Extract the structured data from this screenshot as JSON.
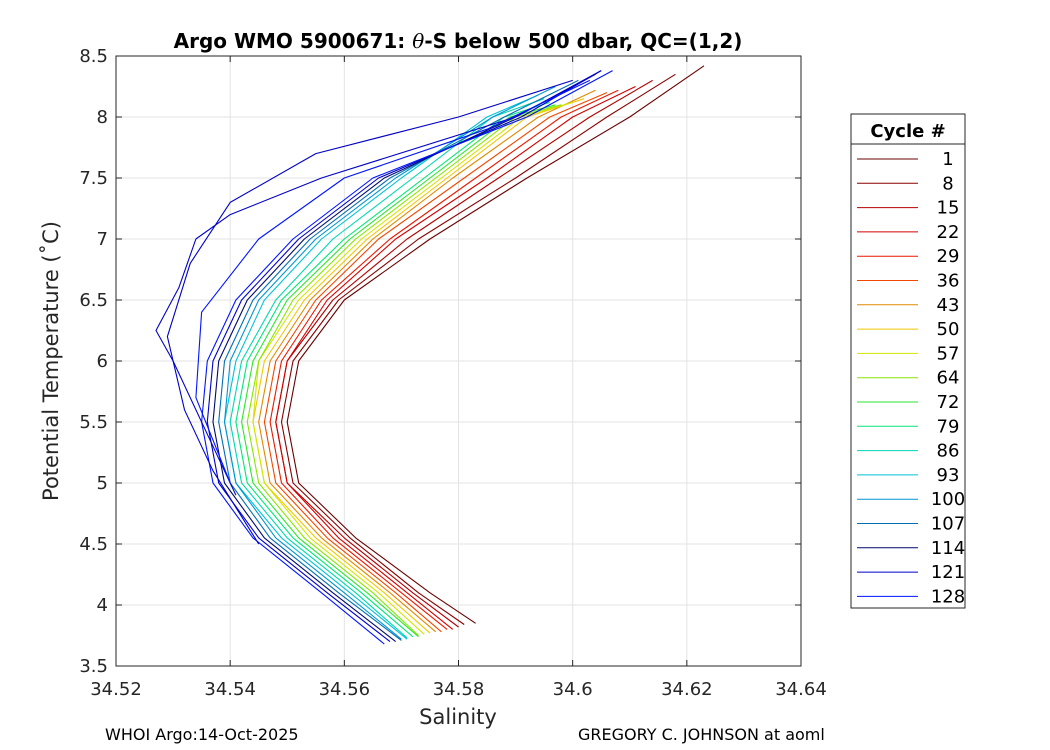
{
  "chart_data": {
    "type": "line",
    "title_prefix": "Argo WMO 5900671: ",
    "title_theta": "θ",
    "title_suffix": "-S below 500 dbar,  QC=(1,2)",
    "xlabel": "Salinity",
    "ylabel": "Potential Temperature (˚C)",
    "xlim": [
      34.52,
      34.64
    ],
    "ylim": [
      3.5,
      8.5
    ],
    "xticks": [
      34.52,
      34.54,
      34.56,
      34.58,
      34.6,
      34.62,
      34.64
    ],
    "xtick_labels": [
      "34.52",
      "34.54",
      "34.56",
      "34.58",
      "34.6",
      "34.62",
      "34.64"
    ],
    "yticks": [
      3.5,
      4,
      4.5,
      5,
      5.5,
      6,
      6.5,
      7,
      7.5,
      8,
      8.5
    ],
    "ytick_labels": [
      "3.5",
      "4",
      "4.5",
      "5",
      "5.5",
      "6",
      "6.5",
      "7",
      "7.5",
      "8",
      "8.5"
    ],
    "grid": true,
    "legend_title": "Cycle #",
    "legend_position": "right-outside",
    "series": [
      {
        "name": "1",
        "color": "#6b0000",
        "values": [
          [
            34.583,
            3.85
          ],
          [
            34.575,
            4.1
          ],
          [
            34.562,
            4.55
          ],
          [
            34.552,
            5.0
          ],
          [
            34.55,
            5.5
          ],
          [
            34.552,
            6.0
          ],
          [
            34.56,
            6.5
          ],
          [
            34.575,
            7.0
          ],
          [
            34.592,
            7.5
          ],
          [
            34.61,
            8.0
          ],
          [
            34.623,
            8.42
          ]
        ]
      },
      {
        "name": "8",
        "color": "#8b0000",
        "values": [
          [
            34.581,
            3.84
          ],
          [
            34.573,
            4.1
          ],
          [
            34.561,
            4.55
          ],
          [
            34.551,
            5.0
          ],
          [
            34.549,
            5.5
          ],
          [
            34.551,
            6.0
          ],
          [
            34.559,
            6.5
          ],
          [
            34.573,
            7.0
          ],
          [
            34.59,
            7.5
          ],
          [
            34.606,
            8.0
          ],
          [
            34.618,
            8.35
          ]
        ]
      },
      {
        "name": "15",
        "color": "#b30000",
        "values": [
          [
            34.58,
            3.82
          ],
          [
            34.572,
            4.1
          ],
          [
            34.56,
            4.55
          ],
          [
            34.55,
            5.0
          ],
          [
            34.548,
            5.5
          ],
          [
            34.55,
            6.0
          ],
          [
            34.558,
            6.5
          ],
          [
            34.571,
            7.0
          ],
          [
            34.587,
            7.5
          ],
          [
            34.603,
            8.0
          ],
          [
            34.614,
            8.3
          ]
        ]
      },
      {
        "name": "22",
        "color": "#d40000",
        "values": [
          [
            34.579,
            3.8
          ],
          [
            34.571,
            4.1
          ],
          [
            34.559,
            4.55
          ],
          [
            34.55,
            5.0
          ],
          [
            34.548,
            5.5
          ],
          [
            34.55,
            6.0
          ],
          [
            34.557,
            6.5
          ],
          [
            34.569,
            7.0
          ],
          [
            34.585,
            7.5
          ],
          [
            34.6,
            8.0
          ],
          [
            34.611,
            8.25
          ]
        ]
      },
      {
        "name": "29",
        "color": "#e81a00",
        "values": [
          [
            34.578,
            3.8
          ],
          [
            34.57,
            4.1
          ],
          [
            34.558,
            4.55
          ],
          [
            34.549,
            5.0
          ],
          [
            34.547,
            5.5
          ],
          [
            34.549,
            6.0
          ],
          [
            34.556,
            6.5
          ],
          [
            34.568,
            7.0
          ],
          [
            34.583,
            7.5
          ],
          [
            34.598,
            8.0
          ],
          [
            34.608,
            8.22
          ]
        ]
      },
      {
        "name": "36",
        "color": "#f04800",
        "values": [
          [
            34.577,
            3.78
          ],
          [
            34.569,
            4.1
          ],
          [
            34.557,
            4.55
          ],
          [
            34.548,
            5.0
          ],
          [
            34.546,
            5.5
          ],
          [
            34.548,
            6.0
          ],
          [
            34.555,
            6.5
          ],
          [
            34.566,
            7.0
          ],
          [
            34.581,
            7.5
          ],
          [
            34.596,
            8.0
          ],
          [
            34.606,
            8.2
          ]
        ]
      },
      {
        "name": "43",
        "color": "#e08a00",
        "values": [
          [
            34.576,
            3.78
          ],
          [
            34.568,
            4.1
          ],
          [
            34.556,
            4.55
          ],
          [
            34.547,
            5.0
          ],
          [
            34.545,
            5.5
          ],
          [
            34.547,
            6.0
          ],
          [
            34.554,
            6.5
          ],
          [
            34.565,
            7.0
          ],
          [
            34.579,
            7.5
          ],
          [
            34.594,
            8.0
          ],
          [
            34.604,
            8.22
          ]
        ]
      },
      {
        "name": "50",
        "color": "#f0c800",
        "values": [
          [
            34.575,
            3.77
          ],
          [
            34.567,
            4.1
          ],
          [
            34.555,
            4.55
          ],
          [
            34.546,
            5.0
          ],
          [
            34.544,
            5.5
          ],
          [
            34.546,
            6.0
          ],
          [
            34.553,
            6.5
          ],
          [
            34.564,
            7.0
          ],
          [
            34.578,
            7.5
          ],
          [
            34.592,
            8.0
          ],
          [
            34.602,
            8.15
          ]
        ]
      },
      {
        "name": "57",
        "color": "#d2e600",
        "values": [
          [
            34.574,
            3.76
          ],
          [
            34.566,
            4.1
          ],
          [
            34.554,
            4.55
          ],
          [
            34.546,
            5.0
          ],
          [
            34.544,
            5.5
          ],
          [
            34.545,
            6.0
          ],
          [
            34.552,
            6.5
          ],
          [
            34.563,
            7.0
          ],
          [
            34.577,
            7.5
          ],
          [
            34.591,
            8.0
          ],
          [
            34.6,
            8.12
          ]
        ]
      },
      {
        "name": "64",
        "color": "#8ae600",
        "values": [
          [
            34.573,
            3.75
          ],
          [
            34.565,
            4.1
          ],
          [
            34.553,
            4.55
          ],
          [
            34.545,
            5.0
          ],
          [
            34.543,
            5.5
          ],
          [
            34.545,
            6.0
          ],
          [
            34.551,
            6.5
          ],
          [
            34.562,
            7.0
          ],
          [
            34.576,
            7.5
          ],
          [
            34.59,
            8.0
          ],
          [
            34.598,
            8.1
          ]
        ]
      },
      {
        "name": "72",
        "color": "#2ee62e",
        "values": [
          [
            34.573,
            3.74
          ],
          [
            34.564,
            4.1
          ],
          [
            34.552,
            4.55
          ],
          [
            34.544,
            5.0
          ],
          [
            34.542,
            5.5
          ],
          [
            34.544,
            6.0
          ],
          [
            34.55,
            6.5
          ],
          [
            34.561,
            7.0
          ],
          [
            34.575,
            7.5
          ],
          [
            34.589,
            8.0
          ],
          [
            34.597,
            8.1
          ]
        ]
      },
      {
        "name": "79",
        "color": "#00e678",
        "values": [
          [
            34.572,
            3.74
          ],
          [
            34.563,
            4.1
          ],
          [
            34.551,
            4.55
          ],
          [
            34.543,
            5.0
          ],
          [
            34.541,
            5.5
          ],
          [
            34.543,
            6.0
          ],
          [
            34.549,
            6.5
          ],
          [
            34.56,
            7.0
          ],
          [
            34.574,
            7.5
          ],
          [
            34.588,
            8.0
          ],
          [
            34.596,
            8.12
          ]
        ]
      },
      {
        "name": "86",
        "color": "#00d7b4",
        "values": [
          [
            34.571,
            3.73
          ],
          [
            34.562,
            4.1
          ],
          [
            34.55,
            4.55
          ],
          [
            34.542,
            5.0
          ],
          [
            34.54,
            5.5
          ],
          [
            34.542,
            6.0
          ],
          [
            34.548,
            6.5
          ],
          [
            34.558,
            7.0
          ],
          [
            34.572,
            7.5
          ],
          [
            34.586,
            8.0
          ],
          [
            34.595,
            8.15
          ]
        ]
      },
      {
        "name": "93",
        "color": "#00c3d7",
        "values": [
          [
            34.571,
            3.72
          ],
          [
            34.561,
            4.1
          ],
          [
            34.549,
            4.55
          ],
          [
            34.541,
            5.0
          ],
          [
            34.539,
            5.5
          ],
          [
            34.541,
            6.0
          ],
          [
            34.546,
            6.5
          ],
          [
            34.556,
            7.0
          ],
          [
            34.57,
            7.5
          ],
          [
            34.585,
            8.0
          ],
          [
            34.594,
            8.18
          ]
        ]
      },
      {
        "name": "100",
        "color": "#0096d2",
        "values": [
          [
            34.57,
            3.72
          ],
          [
            34.56,
            4.1
          ],
          [
            34.548,
            4.55
          ],
          [
            34.541,
            5.0
          ],
          [
            34.539,
            5.5
          ],
          [
            34.54,
            6.0
          ],
          [
            34.545,
            6.5
          ],
          [
            34.555,
            7.0
          ],
          [
            34.569,
            7.5
          ],
          [
            34.586,
            8.0
          ],
          [
            34.597,
            8.25
          ]
        ]
      },
      {
        "name": "107",
        "color": "#006eb4",
        "values": [
          [
            34.57,
            3.71
          ],
          [
            34.559,
            4.1
          ],
          [
            34.547,
            4.55
          ],
          [
            34.54,
            5.0
          ],
          [
            34.538,
            5.5
          ],
          [
            34.539,
            6.0
          ],
          [
            34.544,
            6.5
          ],
          [
            34.554,
            7.0
          ],
          [
            34.568,
            7.5
          ],
          [
            34.588,
            8.0
          ],
          [
            34.601,
            8.3
          ]
        ]
      },
      {
        "name": "114",
        "color": "#000a6e",
        "values": [
          [
            34.569,
            3.7
          ],
          [
            34.558,
            4.1
          ],
          [
            34.546,
            4.55
          ],
          [
            34.539,
            5.0
          ],
          [
            34.537,
            5.5
          ],
          [
            34.538,
            6.0
          ],
          [
            34.543,
            6.5
          ],
          [
            34.553,
            7.0
          ],
          [
            34.567,
            7.5
          ],
          [
            34.59,
            8.0
          ],
          [
            34.604,
            8.35
          ]
        ]
      },
      {
        "name": "121",
        "color": "#0000c8",
        "values": [
          [
            34.568,
            3.7
          ],
          [
            34.557,
            4.1
          ],
          [
            34.545,
            4.55
          ],
          [
            34.538,
            5.0
          ],
          [
            34.536,
            5.5
          ],
          [
            34.537,
            6.0
          ],
          [
            34.542,
            6.5
          ],
          [
            34.552,
            7.0
          ],
          [
            34.566,
            7.5
          ],
          [
            34.591,
            8.0
          ],
          [
            34.605,
            8.38
          ]
        ]
      },
      {
        "name": "128",
        "color": "#0014ff",
        "values": [
          [
            34.567,
            3.68
          ],
          [
            34.556,
            4.1
          ],
          [
            34.544,
            4.55
          ],
          [
            34.537,
            5.0
          ],
          [
            34.535,
            5.5
          ],
          [
            34.536,
            6.0
          ],
          [
            34.541,
            6.5
          ],
          [
            34.551,
            7.0
          ],
          [
            34.565,
            7.5
          ],
          [
            34.592,
            8.0
          ],
          [
            34.607,
            8.38
          ]
        ]
      }
    ],
    "outlier_series": [
      {
        "name": "outlier-a",
        "color": "#0000c8",
        "values": [
          [
            34.541,
            4.9
          ],
          [
            34.536,
            5.4
          ],
          [
            34.53,
            6.0
          ],
          [
            34.527,
            6.25
          ],
          [
            34.531,
            6.6
          ],
          [
            34.534,
            7.0
          ],
          [
            34.54,
            7.2
          ],
          [
            34.556,
            7.5
          ],
          [
            34.59,
            8.0
          ],
          [
            34.605,
            8.38
          ]
        ]
      },
      {
        "name": "outlier-b",
        "color": "#0000c8",
        "values": [
          [
            34.545,
            4.5
          ],
          [
            34.537,
            5.1
          ],
          [
            34.532,
            5.6
          ],
          [
            34.529,
            6.2
          ],
          [
            34.533,
            6.8
          ],
          [
            34.54,
            7.3
          ],
          [
            34.555,
            7.7
          ],
          [
            34.58,
            8.0
          ],
          [
            34.6,
            8.3
          ]
        ]
      },
      {
        "name": "outlier-c",
        "color": "#0014ff",
        "values": [
          [
            34.54,
            5.0
          ],
          [
            34.534,
            5.7
          ],
          [
            34.535,
            6.4
          ],
          [
            34.545,
            7.0
          ],
          [
            34.56,
            7.5
          ],
          [
            34.585,
            7.9
          ],
          [
            34.603,
            8.3
          ]
        ]
      }
    ]
  },
  "footer": {
    "left": "WHOI Argo:14-Oct-2025",
    "right": "GREGORY C. JOHNSON at aoml"
  }
}
